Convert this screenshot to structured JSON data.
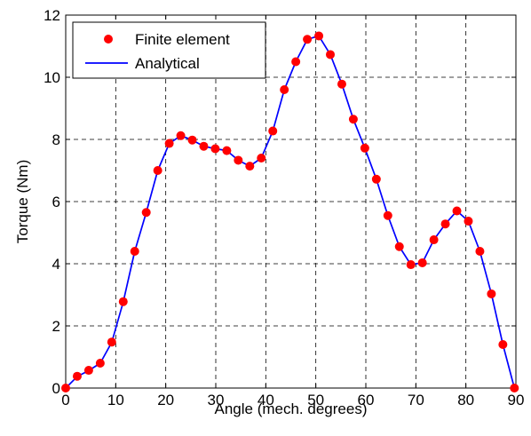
{
  "chart_data": {
    "type": "line",
    "title": "",
    "xlabel": "Angle (mech. degrees)",
    "ylabel": "Torque (Nm)",
    "xlim": [
      0,
      90
    ],
    "ylim": [
      0,
      12
    ],
    "xticks": [
      0,
      10,
      20,
      30,
      40,
      50,
      60,
      70,
      80,
      90
    ],
    "yticks": [
      0,
      2,
      4,
      6,
      8,
      10,
      12
    ],
    "grid": true,
    "legend_position": "top-left",
    "series": [
      {
        "name": "Finite element",
        "style": "markers",
        "color": "#ff0000",
        "x": [
          0,
          2.3,
          4.6,
          6.9,
          9.2,
          11.5,
          13.8,
          16.1,
          18.4,
          20.7,
          23.0,
          25.3,
          27.6,
          29.9,
          32.2,
          34.5,
          36.8,
          39.1,
          41.4,
          43.7,
          46.0,
          48.3,
          50.6,
          52.9,
          55.2,
          57.5,
          59.8,
          62.1,
          64.4,
          66.7,
          69.0,
          71.3,
          73.6,
          75.9,
          78.2,
          80.5,
          82.8,
          85.1,
          87.4,
          89.7
        ],
        "y": [
          0.0,
          0.38,
          0.57,
          0.8,
          1.48,
          2.78,
          4.4,
          5.65,
          7.0,
          7.87,
          8.12,
          7.98,
          7.78,
          7.7,
          7.64,
          7.33,
          7.14,
          7.4,
          8.27,
          9.6,
          10.5,
          11.22,
          11.33,
          10.73,
          9.78,
          8.65,
          7.72,
          6.72,
          5.55,
          4.55,
          3.97,
          4.03,
          4.77,
          5.28,
          5.7,
          5.37,
          4.4,
          3.03,
          1.4,
          0.0
        ]
      },
      {
        "name": "Analytical",
        "style": "line",
        "color": "#0000ff",
        "x": [
          0,
          2.3,
          4.6,
          6.9,
          9.2,
          11.5,
          13.8,
          16.1,
          18.4,
          20.7,
          23.0,
          25.3,
          27.6,
          29.9,
          32.2,
          34.5,
          36.8,
          39.1,
          41.4,
          43.7,
          46.0,
          48.3,
          50.6,
          52.9,
          55.2,
          57.5,
          59.8,
          62.1,
          64.4,
          66.7,
          69.0,
          71.3,
          73.6,
          75.9,
          78.2,
          80.5,
          82.8,
          85.1,
          87.4,
          89.7
        ],
        "y": [
          0.0,
          0.37,
          0.56,
          0.8,
          1.47,
          2.77,
          4.4,
          5.65,
          7.0,
          7.87,
          8.12,
          7.98,
          7.78,
          7.7,
          7.64,
          7.33,
          7.14,
          7.4,
          8.27,
          9.6,
          10.5,
          11.22,
          11.33,
          10.73,
          9.78,
          8.65,
          7.72,
          6.72,
          5.55,
          4.55,
          3.97,
          4.03,
          4.77,
          5.28,
          5.7,
          5.37,
          4.4,
          3.03,
          1.4,
          0.0
        ]
      }
    ]
  }
}
